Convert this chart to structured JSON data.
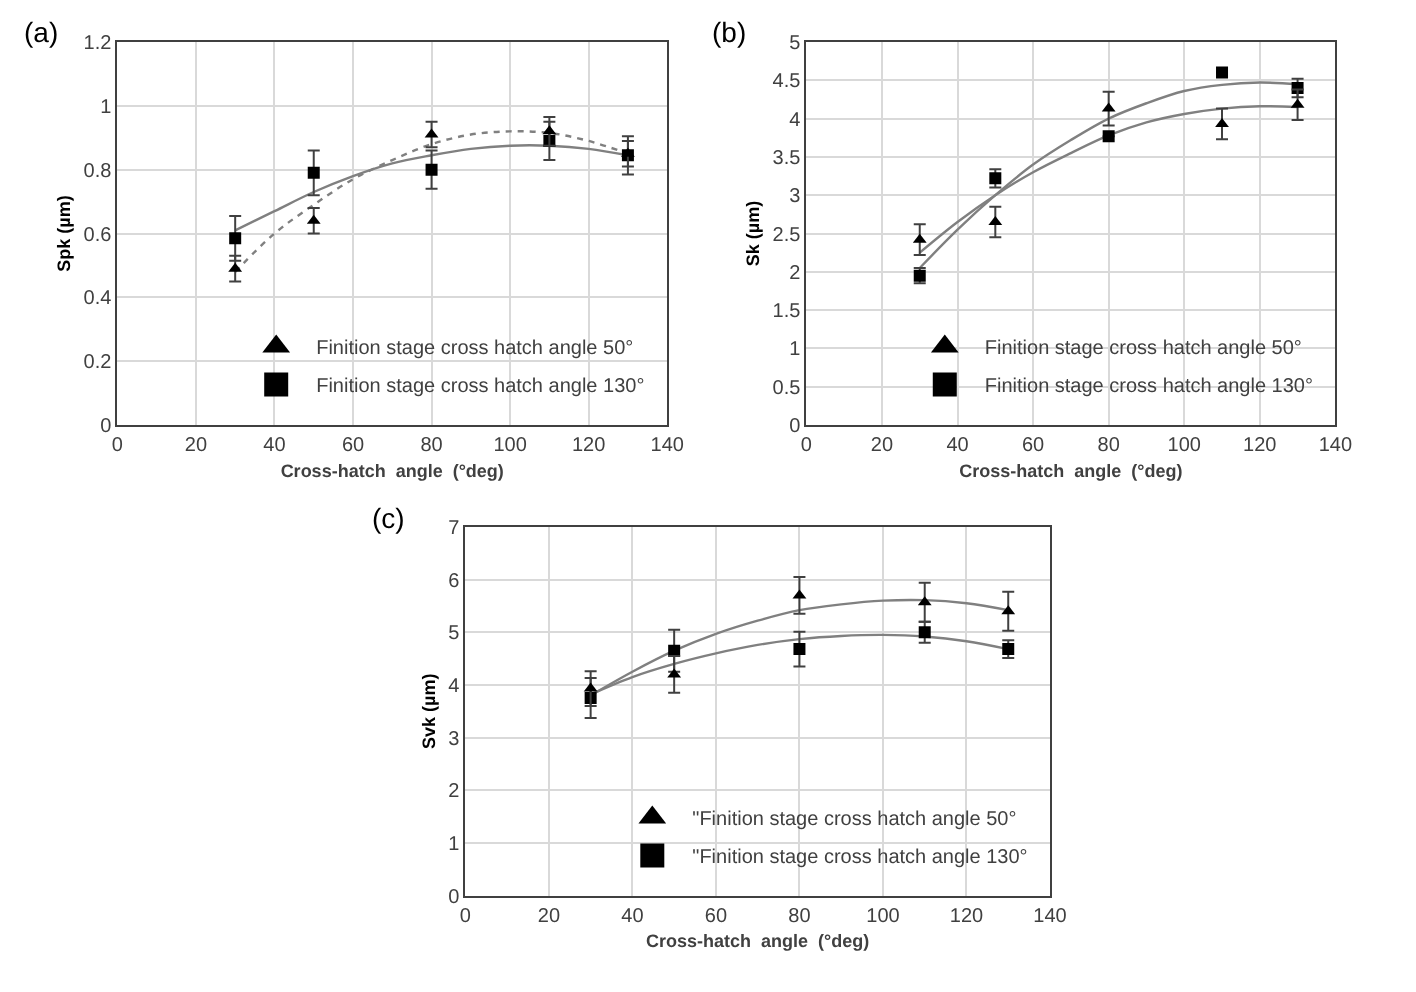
{
  "chart_data": [
    {
      "type": "scatter",
      "title": "(a)",
      "xlabel": "Cross-hatch  angle  (°deg)",
      "ylabel": "Spk (µm)",
      "xlim": [
        0,
        140
      ],
      "xticks": [
        0,
        20,
        40,
        60,
        80,
        100,
        120,
        140
      ],
      "ylim": [
        0,
        1.2
      ],
      "yticks": [
        0,
        0.2,
        0.4,
        0.6,
        0.8,
        1,
        1.2
      ],
      "grid": true,
      "legend": "bottom right",
      "x": [
        30,
        50,
        80,
        110,
        130
      ],
      "series": [
        {
          "name": "Finition stage cross hatch angle 50°",
          "color": "#000000",
          "marker": "triangle",
          "values": [
            0.49,
            0.64,
            0.91,
            0.92,
            0.85
          ],
          "errors": [
            0.04,
            0.04,
            0.04,
            0.045,
            0.04
          ]
        },
        {
          "name": "Finition stage cross hatch angle 130°",
          "color": "#000000",
          "marker": "square",
          "values": [
            0.585,
            0.79,
            0.8,
            0.89,
            0.845
          ],
          "errors": [
            0.07,
            0.07,
            0.06,
            0.06,
            0.06
          ]
        },
        {
          "type": "line",
          "color": "#808080",
          "marker": "none",
          "line_style": "dotted",
          "x": [
            30,
            40,
            50,
            60,
            70,
            80,
            90,
            100,
            110,
            120,
            130
          ],
          "values": [
            0.48,
            0.6,
            0.69,
            0.77,
            0.83,
            0.88,
            0.91,
            0.92,
            0.915,
            0.89,
            0.85
          ]
        },
        {
          "type": "line",
          "color": "#808080",
          "marker": "none",
          "line_style": "solid",
          "x": [
            30,
            40,
            50,
            60,
            70,
            80,
            90,
            100,
            110,
            120,
            130
          ],
          "values": [
            0.61,
            0.67,
            0.73,
            0.78,
            0.82,
            0.845,
            0.865,
            0.875,
            0.875,
            0.865,
            0.845
          ]
        }
      ]
    },
    {
      "type": "scatter",
      "title": "(b)",
      "xlabel": "Cross-hatch  angle  (°deg)",
      "ylabel": "Sk (µm)",
      "xlim": [
        0,
        140
      ],
      "xticks": [
        0,
        20,
        40,
        60,
        80,
        100,
        120,
        140
      ],
      "ylim": [
        0,
        5
      ],
      "yticks": [
        0,
        0.5,
        1,
        1.5,
        2,
        2.5,
        3,
        3.5,
        4,
        4.5,
        5
      ],
      "grid": true,
      "legend": "bottom right",
      "x": [
        30,
        50,
        80,
        110,
        130
      ],
      "series": [
        {
          "name": "Finition stage cross hatch angle 50°",
          "color": "#000000",
          "marker": "triangle",
          "values": [
            2.42,
            2.65,
            4.13,
            3.93,
            4.18
          ],
          "errors": [
            0.2,
            0.2,
            0.22,
            0.2,
            0.2
          ]
        },
        {
          "name": "Finition stage cross hatch angle 130°",
          "color": "#000000",
          "marker": "square",
          "values": [
            1.95,
            3.22,
            3.77,
            4.6,
            4.4
          ],
          "errors": [
            0.1,
            0.12,
            null,
            null,
            0.12
          ]
        },
        {
          "type": "line",
          "color": "#808080",
          "marker": "none",
          "line_style": "solid",
          "x": [
            30,
            40,
            50,
            60,
            70,
            80,
            90,
            100,
            110,
            120,
            130
          ],
          "values": [
            2.25,
            2.65,
            3.0,
            3.3,
            3.55,
            3.78,
            3.95,
            4.06,
            4.13,
            4.16,
            4.15
          ]
        },
        {
          "type": "line",
          "color": "#808080",
          "marker": "none",
          "line_style": "solid",
          "x": [
            30,
            40,
            50,
            60,
            70,
            80,
            90,
            100,
            110,
            120,
            130
          ],
          "values": [
            2.05,
            2.55,
            3.0,
            3.4,
            3.72,
            4.0,
            4.2,
            4.36,
            4.44,
            4.47,
            4.45
          ]
        }
      ]
    },
    {
      "type": "scatter",
      "title": "(c)",
      "xlabel": "Cross-hatch  angle  (°deg)",
      "ylabel": "Svk (µm)",
      "xlim": [
        0,
        140
      ],
      "xticks": [
        0,
        20,
        40,
        60,
        80,
        100,
        120,
        140
      ],
      "ylim": [
        0,
        7
      ],
      "yticks": [
        0,
        1,
        2,
        3,
        4,
        5,
        6,
        7
      ],
      "grid": true,
      "legend": "bottom right",
      "x": [
        30,
        50,
        80,
        110,
        130
      ],
      "series": [
        {
          "name": "\"Finition stage cross hatch angle 50°",
          "color": "#000000",
          "marker": "triangle",
          "values": [
            3.93,
            4.2,
            5.7,
            5.57,
            5.4
          ],
          "errors": [
            0.33,
            0.35,
            0.35,
            0.37,
            0.37
          ]
        },
        {
          "name": "\"Finition stage cross hatch angle 130°",
          "color": "#000000",
          "marker": "square",
          "values": [
            3.75,
            4.65,
            4.68,
            5.0,
            4.68
          ],
          "errors": [
            0.38,
            0.4,
            0.33,
            0.2,
            0.17
          ]
        },
        {
          "type": "line",
          "color": "#808080",
          "marker": "none",
          "line_style": "solid",
          "x": [
            30,
            40,
            50,
            60,
            70,
            80,
            90,
            100,
            110,
            120,
            130
          ],
          "values": [
            3.8,
            4.25,
            4.65,
            4.97,
            5.22,
            5.42,
            5.53,
            5.6,
            5.61,
            5.55,
            5.42
          ]
        },
        {
          "type": "line",
          "color": "#808080",
          "marker": "none",
          "line_style": "solid",
          "x": [
            30,
            40,
            50,
            60,
            70,
            80,
            90,
            100,
            110,
            120,
            130
          ],
          "values": [
            3.82,
            4.15,
            4.4,
            4.6,
            4.76,
            4.87,
            4.93,
            4.95,
            4.92,
            4.83,
            4.68
          ]
        }
      ]
    }
  ]
}
